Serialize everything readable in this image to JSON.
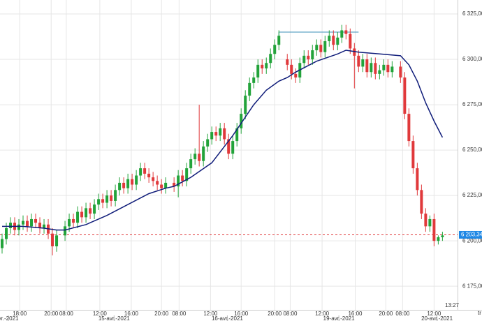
{
  "chart_data": {
    "type": "candlestick",
    "x": [
      0,
      1,
      2,
      3,
      4,
      5,
      6,
      7,
      8,
      9,
      10,
      11,
      12,
      13,
      15,
      16,
      17,
      18,
      19,
      20,
      21,
      22,
      23,
      24,
      25,
      26,
      27,
      28,
      29,
      30,
      31,
      32,
      33,
      34,
      35,
      36,
      37,
      38,
      39,
      41,
      42,
      43,
      44,
      45,
      46,
      47,
      48,
      49,
      50,
      51,
      52,
      53,
      54,
      55,
      56,
      57,
      58,
      59,
      60,
      61,
      62,
      63,
      64,
      65,
      66,
      68,
      69,
      70,
      71,
      72,
      73,
      74,
      75,
      76,
      77,
      78,
      79,
      80,
      81,
      82,
      83,
      84,
      85,
      86,
      87,
      88,
      89,
      90,
      91,
      92,
      93,
      95,
      96,
      97,
      98,
      99,
      100,
      101,
      102,
      103,
      104,
      105
    ],
    "open": [
      6196,
      6201,
      6207,
      6210,
      6206,
      6209,
      6211,
      6208,
      6212,
      6210,
      6207,
      6209,
      6204,
      6197,
      6203,
      6208,
      6212,
      6210,
      6216,
      6213,
      6218,
      6215,
      6220,
      6223,
      6221,
      6225,
      6222,
      6228,
      6232,
      6229,
      6234,
      6231,
      6236,
      6240,
      6237,
      6235,
      6233,
      6231,
      6229,
      6232,
      6230,
      6236,
      6233,
      6240,
      6245,
      6248,
      6244,
      6252,
      6256,
      6260,
      6258,
      6262,
      6256,
      6248,
      6255,
      6262,
      6270,
      6280,
      6287,
      6290,
      6297,
      6295,
      6298,
      6303,
      6308,
      6300,
      6297,
      6292,
      6290,
      6298,
      6302,
      6300,
      6305,
      6308,
      6304,
      6310,
      6313,
      6308,
      6312,
      6316,
      6314,
      6306,
      6302,
      6296,
      6300,
      6293,
      6298,
      6292,
      6294,
      6297,
      6293,
      6296,
      6290,
      6270,
      6255,
      6240,
      6228,
      6215,
      6208,
      6212,
      6200,
      6202
    ],
    "high": [
      6204,
      6210,
      6213,
      6213,
      6212,
      6214,
      6214,
      6215,
      6215,
      6213,
      6212,
      6212,
      6207,
      6206,
      6211,
      6215,
      6215,
      6219,
      6219,
      6221,
      6221,
      6223,
      6226,
      6226,
      6228,
      6228,
      6231,
      6235,
      6235,
      6237,
      6237,
      6239,
      6243,
      6243,
      6240,
      6238,
      6236,
      6234,
      6235,
      6235,
      6239,
      6239,
      6243,
      6248,
      6251,
      6275,
      6255,
      6259,
      6263,
      6263,
      6265,
      6265,
      6259,
      6258,
      6265,
      6273,
      6283,
      6290,
      6293,
      6300,
      6300,
      6301,
      6306,
      6311,
      6316,
      6303,
      6300,
      6295,
      6301,
      6305,
      6305,
      6308,
      6311,
      6311,
      6313,
      6316,
      6316,
      6315,
      6319,
      6319,
      6317,
      6309,
      6305,
      6303,
      6303,
      6301,
      6301,
      6297,
      6300,
      6300,
      6299,
      6299,
      6293,
      6273,
      6258,
      6243,
      6231,
      6218,
      6214,
      6215,
      6203,
      6205
    ],
    "low": [
      6193,
      6198,
      6204,
      6203,
      6203,
      6206,
      6205,
      6205,
      6207,
      6204,
      6204,
      6201,
      6192,
      6194,
      6200,
      6205,
      6207,
      6207,
      6210,
      6210,
      6212,
      6212,
      6217,
      6218,
      6218,
      6219,
      6219,
      6225,
      6226,
      6226,
      6228,
      6228,
      6233,
      6234,
      6232,
      6230,
      6228,
      6226,
      6226,
      6227,
      6224,
      6230,
      6230,
      6237,
      6242,
      6241,
      6241,
      6249,
      6253,
      6255,
      6255,
      6253,
      6245,
      6245,
      6252,
      6259,
      6267,
      6277,
      6284,
      6287,
      6292,
      6292,
      6295,
      6300,
      6305,
      6294,
      6289,
      6287,
      6287,
      6295,
      6297,
      6297,
      6302,
      6301,
      6301,
      6307,
      6305,
      6305,
      6309,
      6311,
      6303,
      6284,
      6293,
      6293,
      6290,
      6290,
      6289,
      6289,
      6291,
      6290,
      6290,
      6287,
      6267,
      6252,
      6237,
      6225,
      6212,
      6205,
      6205,
      6197,
      6198,
      6200
    ],
    "close": [
      6201,
      6207,
      6210,
      6206,
      6209,
      6211,
      6208,
      6212,
      6210,
      6207,
      6209,
      6204,
      6197,
      6203,
      6208,
      6212,
      6210,
      6216,
      6213,
      6218,
      6215,
      6220,
      6223,
      6221,
      6225,
      6222,
      6228,
      6232,
      6229,
      6234,
      6231,
      6236,
      6240,
      6237,
      6235,
      6233,
      6231,
      6229,
      6232,
      6230,
      6236,
      6233,
      6240,
      6245,
      6248,
      6244,
      6252,
      6256,
      6260,
      6258,
      6262,
      6256,
      6248,
      6255,
      6262,
      6270,
      6280,
      6287,
      6290,
      6297,
      6295,
      6298,
      6303,
      6308,
      6313,
      6297,
      6292,
      6290,
      6298,
      6302,
      6300,
      6305,
      6308,
      6304,
      6310,
      6313,
      6308,
      6312,
      6316,
      6314,
      6306,
      6302,
      6296,
      6300,
      6293,
      6298,
      6292,
      6294,
      6297,
      6293,
      6296,
      6290,
      6270,
      6255,
      6240,
      6228,
      6215,
      6208,
      6212,
      6200,
      6202,
      6203
    ],
    "up_color": "#22a33a",
    "down_color": "#e0393b",
    "moving_average": {
      "color": "#101d7a",
      "x": [
        0,
        5,
        10,
        13,
        15,
        20,
        25,
        30,
        35,
        39,
        41,
        45,
        50,
        55,
        60,
        63,
        66,
        68,
        70,
        75,
        80,
        82,
        85,
        90,
        95,
        97,
        99,
        101,
        103,
        105
      ],
      "values": [
        6208,
        6208,
        6207,
        6206,
        6206,
        6209,
        6214,
        6220,
        6226,
        6229,
        6230,
        6235,
        6243,
        6258,
        6275,
        6283,
        6288,
        6290,
        6293,
        6299,
        6303,
        6305,
        6304,
        6303,
        6302,
        6297,
        6288,
        6276,
        6266,
        6257
      ]
    },
    "last_price": {
      "value": 6203.34,
      "label": "6 203,34",
      "color": "#e0393b",
      "box_color": "#1e88e5"
    },
    "level_line": {
      "value": 6315,
      "x": [
        66,
        85
      ],
      "color": "#3a8fb7"
    },
    "xlim": [
      -0.5,
      108.6
    ],
    "ylim": [
      6162,
      6332.7
    ],
    "yticks": [
      {
        "value": 6175,
        "label": "6 175,00"
      },
      {
        "value": 6200,
        "label": "6 200,00"
      },
      {
        "value": 6225,
        "label": "6 225,00"
      },
      {
        "value": 6250,
        "label": "6 250,00"
      },
      {
        "value": 6275,
        "label": "6 275,00"
      },
      {
        "value": 6300,
        "label": "6 300,00"
      },
      {
        "value": 6325,
        "label": "6 325,00"
      }
    ],
    "xticks": [
      {
        "value": 4.2,
        "label": "18:00"
      },
      {
        "value": 11.7,
        "label": "20:00"
      },
      {
        "value": 15.3,
        "label": "08:00"
      },
      {
        "value": 23.3,
        "label": "12:00"
      },
      {
        "value": 30.8,
        "label": "16:00"
      },
      {
        "value": 38,
        "label": "20:00"
      },
      {
        "value": 42.2,
        "label": "08:00"
      },
      {
        "value": 49.7,
        "label": "12:00"
      },
      {
        "value": 57,
        "label": "16:00"
      },
      {
        "value": 65,
        "label": "20:00"
      },
      {
        "value": 68.7,
        "label": "08:00"
      },
      {
        "value": 76.3,
        "label": "12:00"
      },
      {
        "value": 84.2,
        "label": "16:00"
      },
      {
        "value": 91.5,
        "label": "20:00"
      },
      {
        "value": 95.5,
        "label": "08:00"
      },
      {
        "value": 103,
        "label": "12:00"
      }
    ],
    "date_ticks": [
      {
        "value": 1.5,
        "label": "vr.-2021"
      },
      {
        "value": 26.7,
        "label": "15-avr.-2021"
      },
      {
        "value": 53.7,
        "label": "16-avr.-2021"
      },
      {
        "value": 80.3,
        "label": "19-avr.-2021"
      },
      {
        "value": 103.7,
        "label": "20-avr.-2021"
      }
    ],
    "time_label": "13:27",
    "corner_label": "tr",
    "grid": true
  }
}
